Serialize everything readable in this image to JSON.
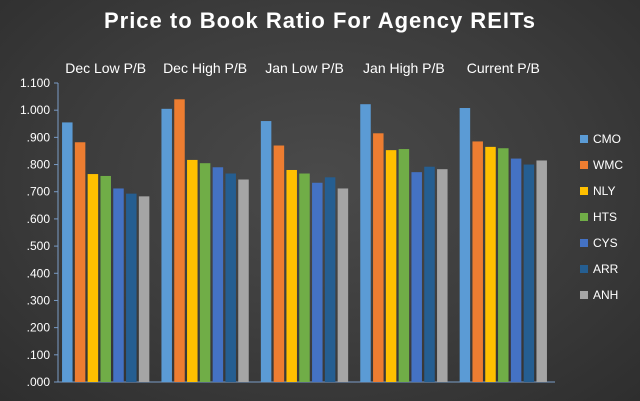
{
  "chart_data": {
    "type": "bar",
    "title": "Price to Book Ratio For Agency REITs",
    "xlabel": "",
    "ylabel": "",
    "ylim": [
      0,
      1.1
    ],
    "yticks": [
      ".000",
      ".100",
      ".200",
      ".300",
      ".400",
      ".500",
      ".600",
      ".700",
      ".800",
      ".900",
      "1.000",
      "1.100"
    ],
    "grid": false,
    "legend_position": "right",
    "categories": [
      "Dec Low P/B",
      "Dec High P/B",
      "Jan Low P/B",
      "Jan High P/B",
      "Current P/B"
    ],
    "series": [
      {
        "name": "CMO",
        "color": "#5b9bd5",
        "values": [
          0.955,
          1.005,
          0.96,
          1.022,
          1.008
        ]
      },
      {
        "name": "WMC",
        "color": "#ed7d31",
        "values": [
          0.882,
          1.04,
          0.87,
          0.915,
          0.885
        ]
      },
      {
        "name": "NLY",
        "color": "#ffc000",
        "values": [
          0.765,
          0.817,
          0.78,
          0.853,
          0.865
        ]
      },
      {
        "name": "HTS",
        "color": "#70ad47",
        "values": [
          0.758,
          0.805,
          0.767,
          0.857,
          0.86
        ]
      },
      {
        "name": "CYS",
        "color": "#4472c4",
        "values": [
          0.712,
          0.79,
          0.733,
          0.772,
          0.822
        ]
      },
      {
        "name": "ARR",
        "color": "#255e91",
        "values": [
          0.693,
          0.767,
          0.753,
          0.792,
          0.8
        ]
      },
      {
        "name": "ANH",
        "color": "#a5a5a5",
        "values": [
          0.683,
          0.745,
          0.712,
          0.783,
          0.815
        ]
      }
    ]
  }
}
